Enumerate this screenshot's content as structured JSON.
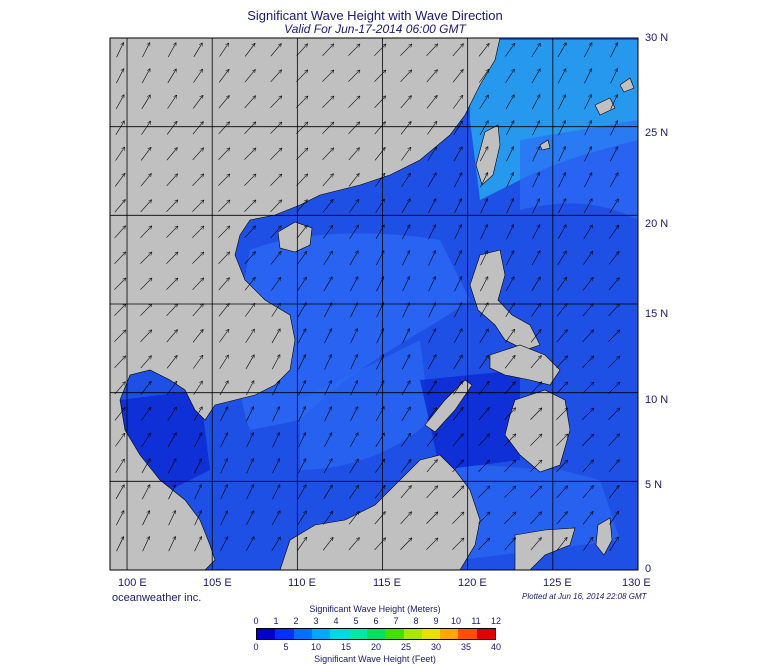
{
  "title": "Significant Wave Height with Wave Direction",
  "subtitle": "Valid For Jun-17-2014 06:00 GMT",
  "credit": "oceanweather inc.",
  "plotted": "Plotted at Jun 16, 2014 22:08 GMT",
  "lon_labels": [
    "100 E",
    "105 E",
    "110 E",
    "115 E",
    "120 E",
    "125 E",
    "130 E"
  ],
  "lat_labels": [
    "30 N",
    "25 N",
    "20 N",
    "15 N",
    "10 N",
    "5 N",
    "0"
  ],
  "colorbar": {
    "title_top": "Significant Wave Height (Meters)",
    "title_bottom": "Significant Wave Height (Feet)",
    "meters": [
      "0",
      "1",
      "2",
      "3",
      "4",
      "5",
      "6",
      "7",
      "8",
      "9",
      "10",
      "11",
      "12"
    ],
    "feet": [
      "0",
      "5",
      "10",
      "15",
      "20",
      "25",
      "30",
      "35",
      "40"
    ],
    "colors": [
      "#0000c8",
      "#0030ff",
      "#0070ff",
      "#00a8ff",
      "#00d8e8",
      "#00e8a8",
      "#00e060",
      "#40e000",
      "#a8e800",
      "#e8e000",
      "#ffa800",
      "#ff5000",
      "#e00000"
    ]
  },
  "colors": {
    "land": "#c0c0c0",
    "sea_base": "#1e50e6",
    "sea_deep": "#0a28d2",
    "sea_light": "#2c6cf5",
    "sea_lighter": "#28a6f0",
    "grid": "#000000"
  },
  "map_data": {
    "lon_range": [
      99,
      130
    ],
    "lat_range": [
      0,
      30
    ],
    "wave_direction": "mostly from southwest toward northeast"
  }
}
